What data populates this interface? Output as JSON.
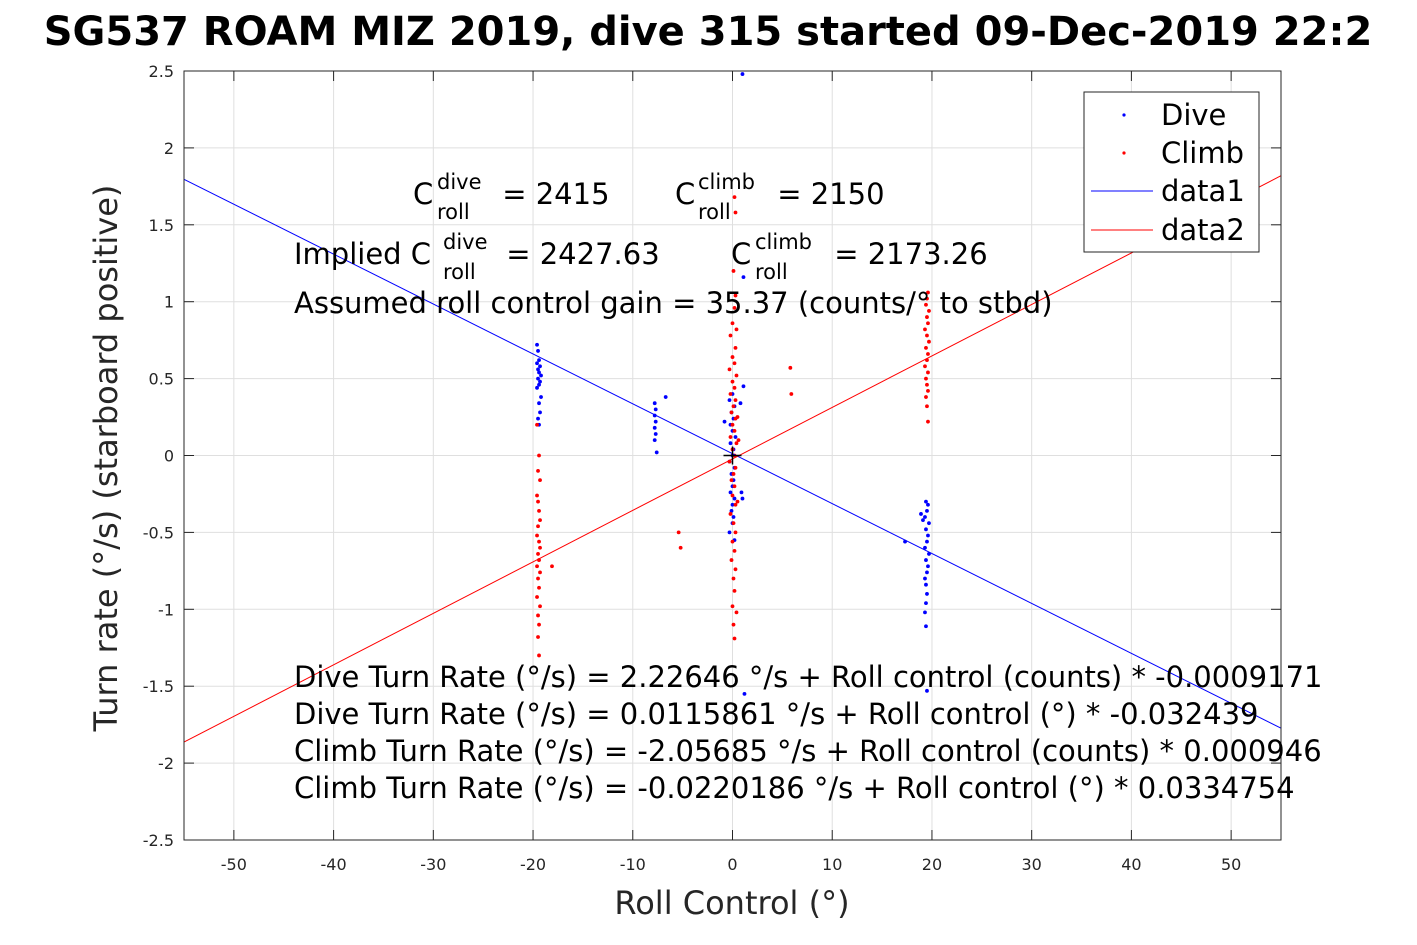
{
  "chart_data": {
    "type": "scatter",
    "title": "SG537 ROAM MIZ 2019, dive 315 started 09-Dec-2019 22:2",
    "xlabel": "Roll Control (°)",
    "ylabel": "Turn rate (°/s) (starboard positive)",
    "xlim": [
      -55,
      55
    ],
    "ylim": [
      -2.5,
      2.5
    ],
    "xticks": [
      -50,
      -40,
      -30,
      -20,
      -10,
      0,
      10,
      20,
      30,
      40,
      50
    ],
    "yticks": [
      -2.5,
      -2,
      -1.5,
      -1,
      -0.5,
      0,
      0.5,
      1,
      1.5,
      2,
      2.5
    ],
    "grid": true,
    "legend_placement": "top-right",
    "legend": [
      "Dive",
      "Climb",
      "data1",
      "data2"
    ],
    "colors": {
      "dive": "#0000ff",
      "climb": "#ff0000",
      "axes": "#262626",
      "grid": "#dfdfdf"
    },
    "series": [
      {
        "name": "Dive",
        "style": "points",
        "color": "#0000ff",
        "points": [
          [
            -19.6,
            0.72
          ],
          [
            -19.5,
            0.68
          ],
          [
            -19.4,
            0.62
          ],
          [
            -19.6,
            0.6
          ],
          [
            -19.3,
            0.58
          ],
          [
            -19.5,
            0.56
          ],
          [
            -19.4,
            0.54
          ],
          [
            -19.2,
            0.52
          ],
          [
            -19.5,
            0.5
          ],
          [
            -19.3,
            0.48
          ],
          [
            -19.4,
            0.46
          ],
          [
            -19.6,
            0.44
          ],
          [
            -19.2,
            0.38
          ],
          [
            -19.4,
            0.34
          ],
          [
            -19.3,
            0.28
          ],
          [
            -19.5,
            0.24
          ],
          [
            -19.4,
            0.2
          ],
          [
            -7.8,
            0.34
          ],
          [
            -7.7,
            0.3
          ],
          [
            -7.8,
            0.26
          ],
          [
            -7.7,
            0.22
          ],
          [
            -7.8,
            0.18
          ],
          [
            -7.7,
            0.14
          ],
          [
            -7.8,
            0.1
          ],
          [
            -7.6,
            0.02
          ],
          [
            -6.7,
            0.38
          ],
          [
            0,
            0.4
          ],
          [
            -0.3,
            0.36
          ],
          [
            0.2,
            0.32
          ],
          [
            -0.1,
            0.28
          ],
          [
            0.1,
            0.24
          ],
          [
            -0.2,
            0.2
          ],
          [
            0,
            0.16
          ],
          [
            0.3,
            0.12
          ],
          [
            -0.2,
            0.08
          ],
          [
            0.1,
            0.04
          ],
          [
            0,
            0
          ],
          [
            -0.3,
            -0.04
          ],
          [
            0.2,
            -0.08
          ],
          [
            -0.1,
            -0.12
          ],
          [
            0.1,
            -0.16
          ],
          [
            0,
            -0.2
          ],
          [
            -0.2,
            -0.24
          ],
          [
            0.2,
            -0.28
          ],
          [
            0,
            -0.32
          ],
          [
            -0.1,
            -0.36
          ],
          [
            0.1,
            -0.4
          ],
          [
            0,
            -0.44
          ],
          [
            -0.3,
            -0.5
          ],
          [
            0.2,
            -0.55
          ],
          [
            -0.8,
            0.22
          ],
          [
            0.8,
            0.34
          ],
          [
            0.9,
            -0.24
          ],
          [
            1,
            -0.28
          ],
          [
            1.1,
            0.45
          ],
          [
            1.1,
            1.16
          ],
          [
            1.0,
            2.48
          ],
          [
            1.2,
            -1.55
          ],
          [
            19.4,
            -0.3
          ],
          [
            19.6,
            -0.32
          ],
          [
            19.5,
            -0.36
          ],
          [
            19.3,
            -0.4
          ],
          [
            19.7,
            -0.44
          ],
          [
            19.4,
            -0.48
          ],
          [
            19.6,
            -0.52
          ],
          [
            19.5,
            -0.56
          ],
          [
            19.3,
            -0.6
          ],
          [
            19.7,
            -0.64
          ],
          [
            19.4,
            -0.68
          ],
          [
            19.6,
            -0.72
          ],
          [
            19.5,
            -0.76
          ],
          [
            19.3,
            -0.8
          ],
          [
            19.4,
            -0.84
          ],
          [
            19.5,
            -0.9
          ],
          [
            19.4,
            -0.96
          ],
          [
            19.3,
            -1.02
          ],
          [
            19.4,
            -1.11
          ],
          [
            19.5,
            -1.53
          ],
          [
            17.3,
            -0.56
          ],
          [
            18.9,
            -0.38
          ],
          [
            19.1,
            -0.42
          ]
        ]
      },
      {
        "name": "Climb",
        "style": "points",
        "color": "#ff0000",
        "points": [
          [
            -19.6,
            0.2
          ],
          [
            -19.4,
            0.0
          ],
          [
            -19.5,
            -0.1
          ],
          [
            -19.3,
            -0.16
          ],
          [
            -19.6,
            -0.26
          ],
          [
            -19.5,
            -0.3
          ],
          [
            -19.4,
            -0.36
          ],
          [
            -19.3,
            -0.42
          ],
          [
            -19.5,
            -0.46
          ],
          [
            -19.6,
            -0.52
          ],
          [
            -19.4,
            -0.56
          ],
          [
            -19.3,
            -0.6
          ],
          [
            -19.5,
            -0.64
          ],
          [
            -19.4,
            -0.68
          ],
          [
            -19.6,
            -0.72
          ],
          [
            -19.3,
            -0.76
          ],
          [
            -19.5,
            -0.8
          ],
          [
            -19.4,
            -0.86
          ],
          [
            -19.6,
            -0.92
          ],
          [
            -19.3,
            -0.98
          ],
          [
            -19.5,
            -1.04
          ],
          [
            -19.4,
            -1.1
          ],
          [
            -19.5,
            -1.18
          ],
          [
            -19.4,
            -1.3
          ],
          [
            -18.1,
            -0.72
          ],
          [
            -5.4,
            -0.5
          ],
          [
            -5.2,
            -0.6
          ],
          [
            5.8,
            0.57
          ],
          [
            5.9,
            0.4
          ],
          [
            0.2,
            1.68
          ],
          [
            0.3,
            1.58
          ],
          [
            0.1,
            1.2
          ],
          [
            0.3,
            1.04
          ],
          [
            0.2,
            0.96
          ],
          [
            0,
            0.86
          ],
          [
            0.4,
            0.82
          ],
          [
            -0.2,
            0.78
          ],
          [
            0.3,
            0.7
          ],
          [
            0,
            0.64
          ],
          [
            0.2,
            0.6
          ],
          [
            -0.3,
            0.56
          ],
          [
            0.4,
            0.52
          ],
          [
            0,
            0.48
          ],
          [
            0.2,
            0.44
          ],
          [
            -0.2,
            0.4
          ],
          [
            0.3,
            0.36
          ],
          [
            0.1,
            0.32
          ],
          [
            -0.1,
            0.28
          ],
          [
            0.3,
            0.24
          ],
          [
            0,
            0.2
          ],
          [
            0.2,
            0.16
          ],
          [
            -0.2,
            0.12
          ],
          [
            0.4,
            0.08
          ],
          [
            0,
            0.04
          ],
          [
            0.2,
            0
          ],
          [
            -0.3,
            -0.04
          ],
          [
            0.3,
            -0.08
          ],
          [
            0.1,
            -0.12
          ],
          [
            -0.1,
            -0.16
          ],
          [
            0.2,
            -0.2
          ],
          [
            0,
            -0.26
          ],
          [
            0.3,
            -0.32
          ],
          [
            -0.2,
            -0.38
          ],
          [
            0.1,
            -0.44
          ],
          [
            0.3,
            -0.5
          ],
          [
            0,
            -0.56
          ],
          [
            0.2,
            -0.62
          ],
          [
            -0.1,
            -0.68
          ],
          [
            0.3,
            -0.74
          ],
          [
            0.1,
            -0.8
          ],
          [
            0.2,
            -0.88
          ],
          [
            0,
            -0.98
          ],
          [
            0.4,
            -1.02
          ],
          [
            0.1,
            -1.1
          ],
          [
            0.2,
            -1.19
          ],
          [
            0.5,
            0.25
          ],
          [
            0.6,
            0.1
          ],
          [
            0.5,
            -0.3
          ],
          [
            19.6,
            1.06
          ],
          [
            19.5,
            1.02
          ],
          [
            19.4,
            0.98
          ],
          [
            19.7,
            0.94
          ],
          [
            19.5,
            0.9
          ],
          [
            19.6,
            0.86
          ],
          [
            19.3,
            0.82
          ],
          [
            19.5,
            0.78
          ],
          [
            19.7,
            0.74
          ],
          [
            19.4,
            0.7
          ],
          [
            19.6,
            0.66
          ],
          [
            19.5,
            0.62
          ],
          [
            19.3,
            0.58
          ],
          [
            19.6,
            0.54
          ],
          [
            19.4,
            0.5
          ],
          [
            19.5,
            0.46
          ],
          [
            19.6,
            0.42
          ],
          [
            19.4,
            0.38
          ],
          [
            19.5,
            0.32
          ],
          [
            19.6,
            0.22
          ]
        ]
      },
      {
        "name": "data1",
        "style": "line",
        "color": "#0000ff",
        "x": [
          -55,
          55
        ],
        "y": [
          1.796,
          -1.773
        ]
      },
      {
        "name": "data2",
        "style": "line",
        "color": "#ff0000",
        "x": [
          -55,
          55
        ],
        "y": [
          -1.863,
          1.819
        ]
      }
    ],
    "annotations": {
      "c_dive": {
        "prefix": "C",
        "sup": "dive",
        "sub": "roll",
        "text": " = 2415"
      },
      "c_climb": {
        "prefix": "C",
        "sup": "climb",
        "sub": "roll",
        "text": " = 2150"
      },
      "implied_dive": {
        "prefix": "Implied C",
        "sup": "dive",
        "sub": "roll",
        "text": " = 2427.63"
      },
      "implied_climb": {
        "prefix": "C",
        "sup": "climb",
        "sub": "roll",
        "text": " = 2173.26"
      },
      "gain": "Assumed roll control gain = 35.37 (counts/° to stbd)",
      "fit_lines": [
        "Dive Turn Rate (°/s) = 2.22646 °/s + Roll control (counts) * -0.0009171",
        "Dive Turn Rate (°/s) = 0.0115861 °/s + Roll control (°) * -0.032439",
        "Climb Turn Rate (°/s) = -2.05685 °/s + Roll control (counts) * 0.000946",
        "Climb Turn Rate (°/s) = -0.0220186 °/s + Roll control (°) * 0.0334754"
      ]
    }
  }
}
